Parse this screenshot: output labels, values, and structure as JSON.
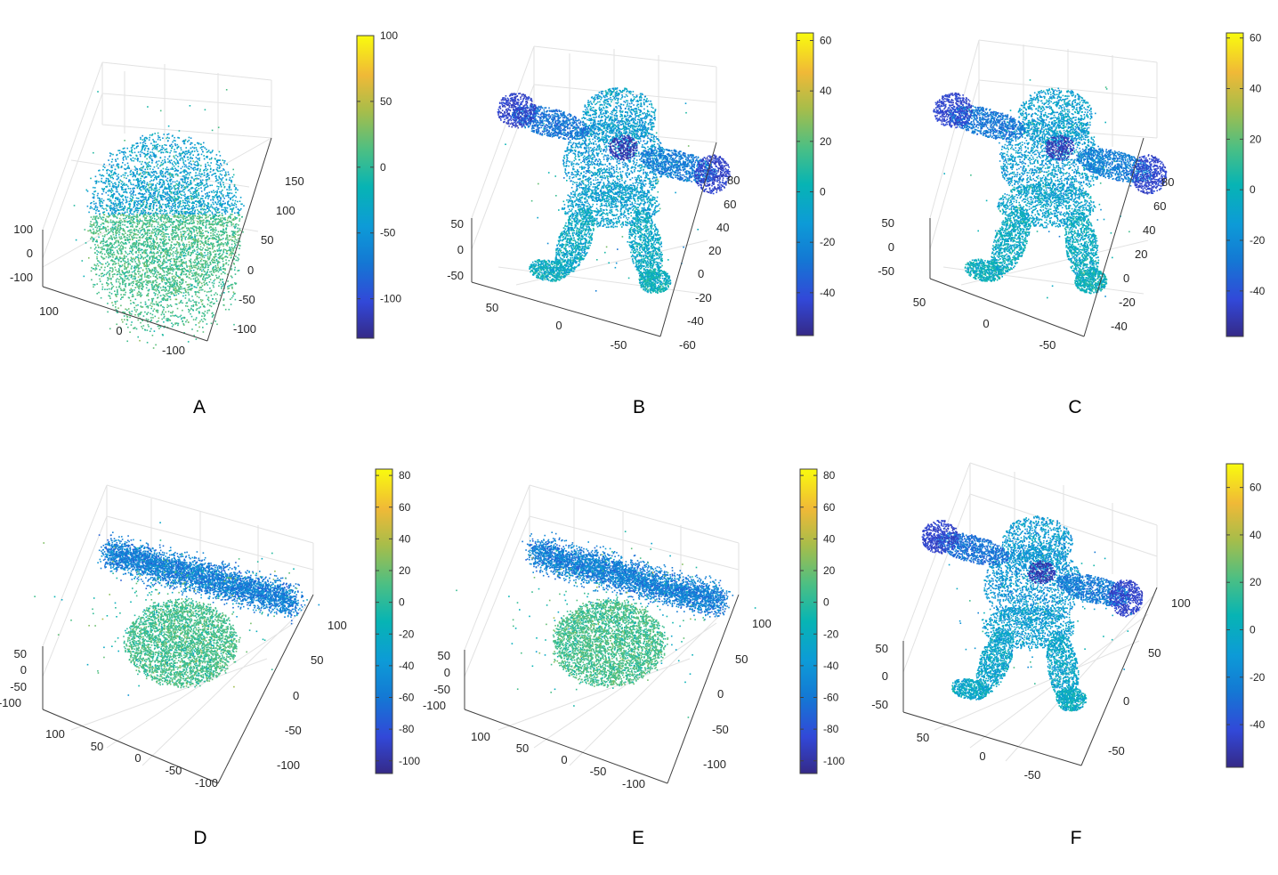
{
  "colormap": "parula",
  "colors": {
    "background": "#ffffff",
    "grid": "#e2e2e2",
    "axis": "#404040",
    "text": "#262626"
  },
  "chart_data": [
    {
      "panel_label": "A",
      "type": "scatter3d",
      "shape": "blob",
      "z_ticks": [
        "100",
        "0",
        "-100"
      ],
      "x_ticks": [
        "100",
        "0",
        "-100"
      ],
      "y_ticks": [
        "150",
        "100",
        "50",
        "0",
        "-50",
        "-100"
      ],
      "colorbar": {
        "min": -130,
        "max": 100,
        "ticks": [
          100,
          50,
          0,
          -50,
          -100
        ]
      }
    },
    {
      "panel_label": "B",
      "type": "scatter3d",
      "shape": "figure",
      "z_ticks": [
        "50",
        "0",
        "-50"
      ],
      "x_ticks": [
        "50",
        "0",
        "-50"
      ],
      "y_ticks": [
        "80",
        "60",
        "40",
        "20",
        "0",
        "-20",
        "-40",
        "-60"
      ],
      "colorbar": {
        "min": -57,
        "max": 63,
        "ticks": [
          60,
          40,
          20,
          0,
          -20,
          -40
        ]
      }
    },
    {
      "panel_label": "C",
      "type": "scatter3d",
      "shape": "figure",
      "z_ticks": [
        "50",
        "0",
        "-50"
      ],
      "x_ticks": [
        "50",
        "0",
        "-50"
      ],
      "y_ticks": [
        "80",
        "60",
        "40",
        "20",
        "0",
        "-20",
        "-40"
      ],
      "colorbar": {
        "min": -58,
        "max": 62,
        "ticks": [
          60,
          40,
          20,
          0,
          -20,
          -40
        ]
      }
    },
    {
      "panel_label": "D",
      "type": "scatter3d",
      "shape": "split",
      "z_ticks": [
        "50",
        "0",
        "-50",
        "-100"
      ],
      "x_ticks": [
        "100",
        "50",
        "0",
        "-50",
        "-100"
      ],
      "y_ticks": [
        "100",
        "50",
        "0",
        "-50",
        "-100"
      ],
      "colorbar": {
        "min": -108,
        "max": 84,
        "ticks": [
          80,
          60,
          40,
          20,
          0,
          -20,
          -40,
          -60,
          -80,
          -100
        ]
      }
    },
    {
      "panel_label": "E",
      "type": "scatter3d",
      "shape": "split",
      "z_ticks": [
        "50",
        "0",
        "-50",
        "-100"
      ],
      "x_ticks": [
        "100",
        "50",
        "0",
        "-50",
        "-100"
      ],
      "y_ticks": [
        "100",
        "50",
        "0",
        "-50",
        "-100"
      ],
      "colorbar": {
        "min": -108,
        "max": 84,
        "ticks": [
          80,
          60,
          40,
          20,
          0,
          -20,
          -40,
          -60,
          -80,
          -100
        ]
      }
    },
    {
      "panel_label": "F",
      "type": "scatter3d",
      "shape": "figure",
      "z_ticks": [
        "50",
        "0",
        "-50"
      ],
      "x_ticks": [
        "50",
        "0",
        "-50"
      ],
      "y_ticks": [
        "100",
        "50",
        "0",
        "-50"
      ],
      "colorbar": {
        "min": -58,
        "max": 70,
        "ticks": [
          60,
          40,
          20,
          0,
          -20,
          -40
        ]
      }
    }
  ]
}
